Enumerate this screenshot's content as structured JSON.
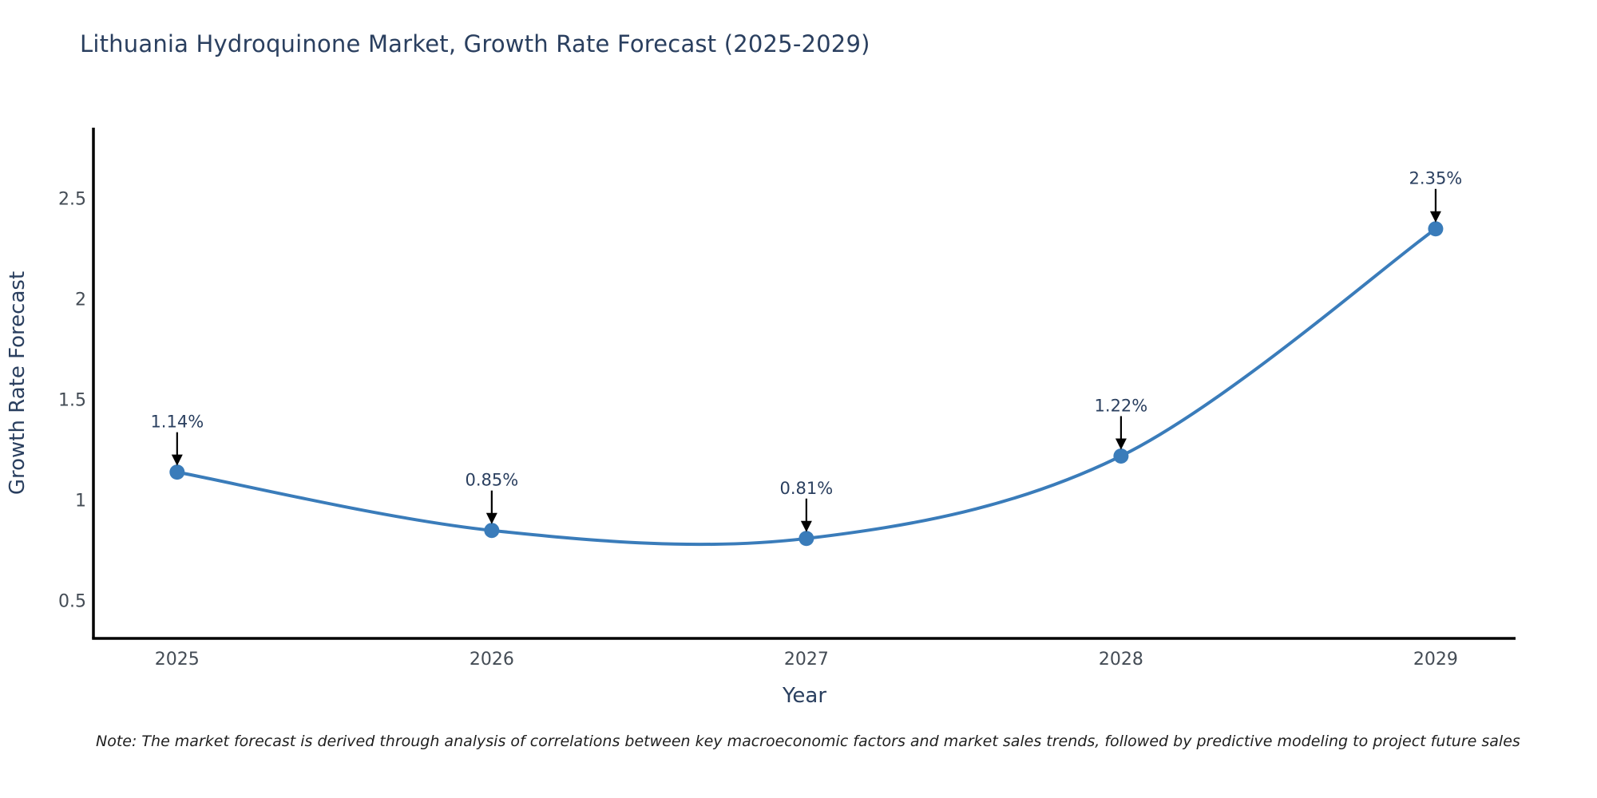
{
  "chart_data": {
    "type": "line",
    "line_shape": "spline",
    "title": "Lithuania Hydroquinone Market, Growth Rate Forecast (2025-2029)",
    "xlabel": "Year",
    "ylabel": "Growth Rate Forecast",
    "x": [
      2025,
      2026,
      2027,
      2028,
      2029
    ],
    "values": [
      1.14,
      0.85,
      0.81,
      1.22,
      2.35
    ],
    "point_labels": [
      "1.14%",
      "0.85%",
      "0.81%",
      "1.22%",
      "2.35%"
    ],
    "xticks": [
      "2025",
      "2026",
      "2027",
      "2028",
      "2029"
    ],
    "yticks": [
      0.5,
      1,
      1.5,
      2,
      2.5
    ],
    "ytick_labels": [
      "0.5",
      "1",
      "1.5",
      "2",
      "2.5"
    ],
    "xlim": [
      2024.734,
      2029.254
    ],
    "ylim": [
      0.313,
      2.853
    ],
    "grid": false,
    "legend": false,
    "line_color": "#3a7cba",
    "marker_color": "#3a7cba",
    "axis_color": "#000000",
    "arrow_color": "#000000",
    "title_color": "#2a3f5f",
    "axis_label_color": "#2a3f5f",
    "tick_label_color": "#444c55",
    "annotation_text_color": "#2a3f5f",
    "note": "Note: The market forecast is derived through analysis of correlations between key macroeconomic factors and market sales trends, followed by predictive modeling to project future sales"
  }
}
